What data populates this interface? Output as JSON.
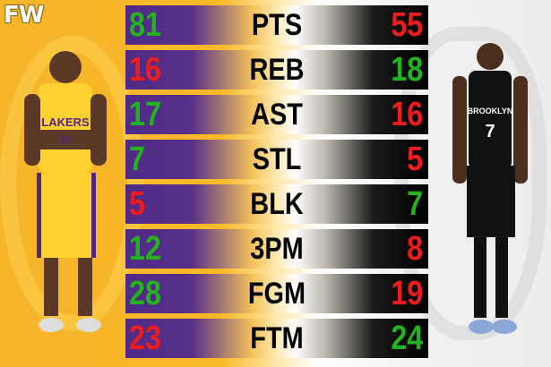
{
  "brand": {
    "logo_text": "FW"
  },
  "players": {
    "left": {
      "team_jersey": "LAKERS",
      "number": "24"
    },
    "right": {
      "team_jersey": "BROOKLYN",
      "number": "7"
    }
  },
  "colors": {
    "better": "#22b31f",
    "worse": "#ee1c1c",
    "lakers_purple": "#552583",
    "lakers_gold": "#f8b928"
  },
  "stats": [
    {
      "label": "PTS",
      "left": "81",
      "right": "55",
      "winner": "left"
    },
    {
      "label": "REB",
      "left": "16",
      "right": "18",
      "winner": "right"
    },
    {
      "label": "AST",
      "left": "17",
      "right": "16",
      "winner": "left"
    },
    {
      "label": "STL",
      "left": "7",
      "right": "5",
      "winner": "left"
    },
    {
      "label": "BLK",
      "left": "5",
      "right": "7",
      "winner": "right"
    },
    {
      "label": "3PM",
      "left": "12",
      "right": "8",
      "winner": "left"
    },
    {
      "label": "FGM",
      "left": "28",
      "right": "19",
      "winner": "left"
    },
    {
      "label": "FTM",
      "left": "23",
      "right": "24",
      "winner": "right"
    }
  ]
}
